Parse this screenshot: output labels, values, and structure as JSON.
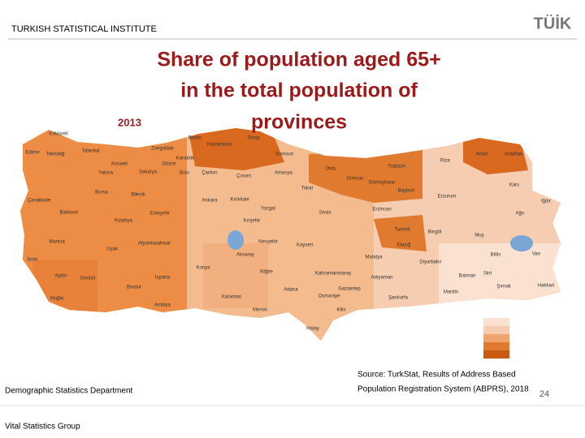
{
  "header": {
    "institute": "TURKISH STATISTICAL INSTITUTE",
    "logo": "TÜİK"
  },
  "title": {
    "lines": [
      "Share of population aged 65+",
      "in the total population of",
      "provinces"
    ],
    "year": "2013"
  },
  "map": {
    "provinces": [
      "Kırklareli",
      "Edirne",
      "Tekirdağ",
      "İstanbul",
      "Zonguldak",
      "Kastamonu",
      "Sinop",
      "Bartın",
      "Karabük",
      "Samsun",
      "Kocaeli",
      "Yalova",
      "Sakarya",
      "Düzce",
      "Bolu",
      "Çankırı",
      "Çorum",
      "Amasya",
      "Ordu",
      "Trabzon",
      "Rize",
      "Artvin",
      "Ardahan",
      "Giresun",
      "Gümüşhane",
      "Bayburt",
      "Tokat",
      "Erzurum",
      "Kars",
      "Çanakkale",
      "Bursa",
      "Bilecik",
      "Ankara",
      "Kırıkkale",
      "Yozgat",
      "Sivas",
      "Erzincan",
      "Iğdır",
      "Ağrı",
      "Balıkesir",
      "Kütahya",
      "Eskişehir",
      "Kırşehir",
      "Tunceli",
      "Bingöl",
      "Muş",
      "Manisa",
      "Afyonkarahisar",
      "Nevşehir",
      "Kayseri",
      "Elazığ",
      "Bitlis",
      "Van",
      "Uşak",
      "İzmir",
      "Aksaray",
      "Malatya",
      "Diyarbakır",
      "Konya",
      "Niğde",
      "Kahramanmaraş",
      "Adıyaman",
      "Batman",
      "Siirt",
      "Aydın",
      "Denizli",
      "Isparta",
      "Burdur",
      "Şırnak",
      "Hakkari",
      "Muğla",
      "Karaman",
      "Adana",
      "Osmaniye",
      "Şanlıurfa",
      "Mardin",
      "Antalya",
      "Mersin",
      "Gaziantep",
      "Kilis",
      "Hatay"
    ]
  },
  "source": [
    "Source: TurkStat, Results of Address Based",
    "Population Registration System (ABPRS), 2018"
  ],
  "footer": {
    "department": "Demographic Statistics Department",
    "group": "Vital Statistics Group",
    "page": "24"
  }
}
